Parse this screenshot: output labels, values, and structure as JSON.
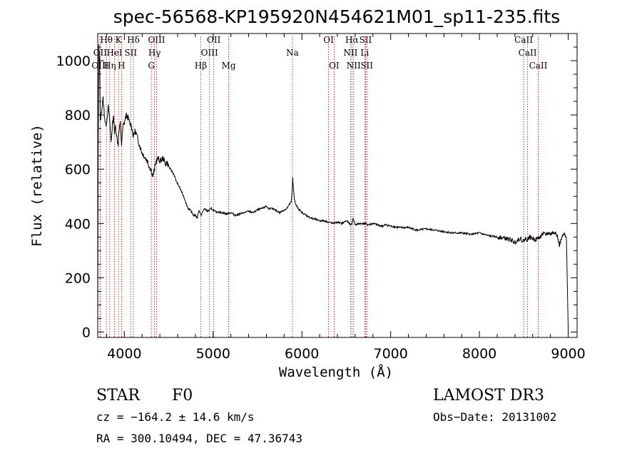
{
  "chart_data": {
    "type": "line",
    "title": "spec-56568-KP195920N454621M01_sp11-235.fits",
    "xlabel": "Wavelength (Å)",
    "ylabel": "Flux (relative)",
    "xlim": [
      3700,
      9100
    ],
    "ylim": [
      -20,
      1100
    ],
    "x_ticks": [
      4000,
      5000,
      6000,
      7000,
      8000,
      9000
    ],
    "x_tick_labels": [
      "4000",
      "5000",
      "6000",
      "7000",
      "8000",
      "9000"
    ],
    "y_ticks": [
      0,
      200,
      400,
      600,
      800,
      1000
    ],
    "y_tick_labels": [
      "0",
      "200",
      "400",
      "600",
      "800",
      "1000"
    ],
    "line_color": "#000000",
    "marker_color": "#cc0000",
    "series": [
      {
        "name": "flux",
        "x": [
          3700,
          3705,
          3712,
          3720,
          3730,
          3745,
          3760,
          3775,
          3790,
          3805,
          3820,
          3835,
          3850,
          3865,
          3880,
          3889,
          3900,
          3915,
          3930,
          3940,
          3955,
          3968,
          3985,
          4000,
          4020,
          4040,
          4060,
          4080,
          4101,
          4120,
          4140,
          4160,
          4180,
          4200,
          4220,
          4240,
          4260,
          4280,
          4300,
          4320,
          4340,
          4360,
          4380,
          4400,
          4420,
          4440,
          4460,
          4480,
          4500,
          4520,
          4540,
          4560,
          4580,
          4600,
          4620,
          4640,
          4660,
          4680,
          4700,
          4720,
          4740,
          4760,
          4780,
          4800,
          4820,
          4840,
          4861,
          4880,
          4900,
          4920,
          4940,
          4960,
          4980,
          5000,
          5020,
          5040,
          5060,
          5080,
          5100,
          5150,
          5200,
          5250,
          5300,
          5350,
          5400,
          5450,
          5500,
          5550,
          5580,
          5600,
          5620,
          5650,
          5700,
          5750,
          5800,
          5830,
          5860,
          5880,
          5890,
          5896,
          5905,
          5915,
          5930,
          5960,
          6000,
          6050,
          6100,
          6150,
          6200,
          6250,
          6300,
          6350,
          6400,
          6450,
          6500,
          6550,
          6563,
          6580,
          6600,
          6650,
          6700,
          6750,
          6800,
          6850,
          6900,
          6950,
          7000,
          7100,
          7200,
          7300,
          7400,
          7500,
          7600,
          7700,
          7800,
          7900,
          8000,
          8100,
          8200,
          8300,
          8350,
          8400,
          8450,
          8498,
          8520,
          8542,
          8560,
          8600,
          8640,
          8662,
          8680,
          8700,
          8750,
          8780,
          8800,
          8820,
          8850,
          8880,
          8900,
          8920,
          8940,
          8960,
          8980,
          9000
        ],
        "y": [
          -10,
          650,
          1060,
          1000,
          780,
          820,
          860,
          800,
          760,
          790,
          830,
          780,
          700,
          760,
          800,
          730,
          760,
          720,
          690,
          740,
          770,
          690,
          760,
          770,
          800,
          790,
          770,
          760,
          720,
          740,
          725,
          700,
          680,
          660,
          650,
          640,
          630,
          610,
          600,
          575,
          600,
          630,
          640,
          630,
          635,
          640,
          620,
          625,
          610,
          600,
          590,
          580,
          560,
          545,
          535,
          520,
          505,
          490,
          470,
          455,
          450,
          440,
          430,
          430,
          420,
          450,
          430,
          440,
          455,
          450,
          445,
          450,
          455,
          450,
          445,
          440,
          445,
          440,
          440,
          435,
          440,
          430,
          435,
          440,
          445,
          440,
          450,
          455,
          460,
          465,
          455,
          455,
          450,
          440,
          450,
          455,
          470,
          480,
          520,
          570,
          530,
          490,
          470,
          455,
          440,
          430,
          420,
          415,
          410,
          410,
          405,
          400,
          405,
          400,
          410,
          395,
          400,
          420,
          395,
          400,
          400,
          395,
          400,
          395,
          390,
          395,
          390,
          385,
          385,
          375,
          380,
          375,
          370,
          365,
          365,
          360,
          365,
          355,
          350,
          345,
          340,
          330,
          345,
          335,
          345,
          340,
          350,
          345,
          340,
          350,
          345,
          360,
          360,
          365,
          360,
          365,
          370,
          350,
          320,
          340,
          355,
          360,
          340,
          0
        ]
      }
    ],
    "line_markers": [
      {
        "label": "Hθ",
        "x": 3798,
        "row": 0
      },
      {
        "label": "K",
        "x": 3934,
        "row": 0
      },
      {
        "label": "Hδ",
        "x": 4102,
        "row": 0
      },
      {
        "label": "OIII",
        "x": 4363,
        "row": 0
      },
      {
        "label": "OII",
        "x": 5007,
        "row": 0
      },
      {
        "label": "OI",
        "x": 6300,
        "row": 0
      },
      {
        "label": "Hα",
        "x": 6563,
        "row": 0
      },
      {
        "label": "SII",
        "x": 6717,
        "row": 0
      },
      {
        "label": "CaII",
        "x": 8498,
        "row": 0
      },
      {
        "label": "OII",
        "x": 3727,
        "row": 1
      },
      {
        "label": "HeI",
        "x": 3889,
        "row": 1
      },
      {
        "label": "SII",
        "x": 4072,
        "row": 1
      },
      {
        "label": "Hγ",
        "x": 4340,
        "row": 1
      },
      {
        "label": "OIII",
        "x": 4959,
        "row": 1
      },
      {
        "label": "Na",
        "x": 5893,
        "row": 1
      },
      {
        "label": "NII",
        "x": 6548,
        "row": 1
      },
      {
        "label": "Li",
        "x": 6708,
        "row": 1
      },
      {
        "label": "CaII",
        "x": 8542,
        "row": 1
      },
      {
        "label": "OIII",
        "x": 3727,
        "row": 2
      },
      {
        "label": "Hη",
        "x": 3835,
        "row": 2
      },
      {
        "label": "H",
        "x": 3968,
        "row": 2
      },
      {
        "label": "G",
        "x": 4304,
        "row": 2
      },
      {
        "label": "Hβ",
        "x": 4861,
        "row": 2
      },
      {
        "label": "Mg",
        "x": 5175,
        "row": 2
      },
      {
        "label": "OI",
        "x": 6363,
        "row": 2
      },
      {
        "label": "NII",
        "x": 6583,
        "row": 2
      },
      {
        "label": "SII",
        "x": 6731,
        "row": 2
      },
      {
        "label": "CaII",
        "x": 8662,
        "row": 2
      }
    ]
  },
  "info": {
    "obj_class": "STAR",
    "subclass": "F0",
    "survey": "LAMOST DR3",
    "cz": "cz = −164.2 ± 14.6 km/s",
    "obs_date": "Obs−Date: 20131002",
    "radec": "RA = 300.10494, DEC =  47.36743"
  }
}
